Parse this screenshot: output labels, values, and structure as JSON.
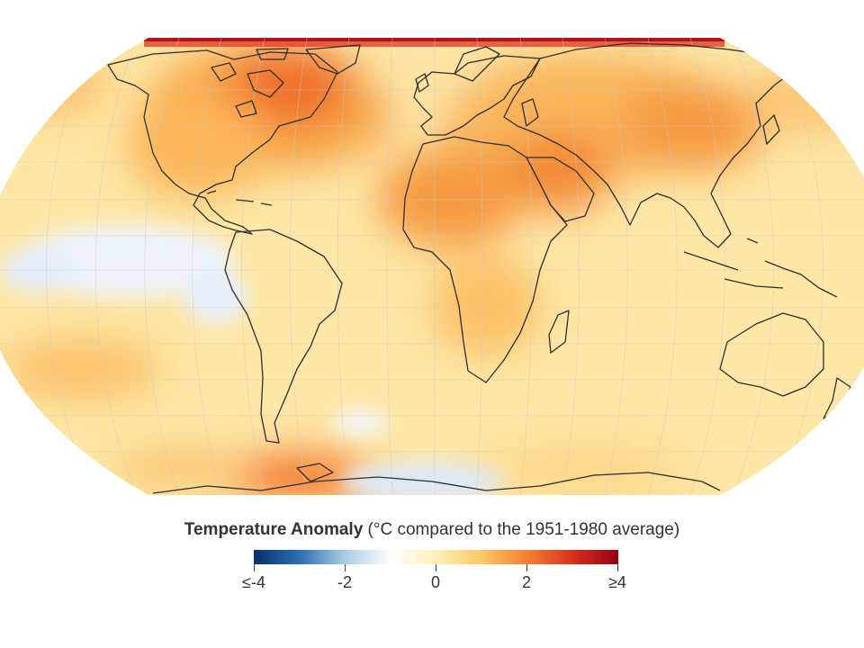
{
  "legend": {
    "title_bold": "Temperature Anomaly",
    "title_rest": " (°C compared to the 1951-1980 average)",
    "labels": [
      "≤-4",
      "-2",
      "0",
      "2",
      "≥4"
    ],
    "colors": [
      "#08306b",
      "#2c6fb2",
      "#a9cce3",
      "#ffffff",
      "#fff0b8",
      "#fdc866",
      "#f77f2f",
      "#d7301f",
      "#99000d"
    ]
  }
}
